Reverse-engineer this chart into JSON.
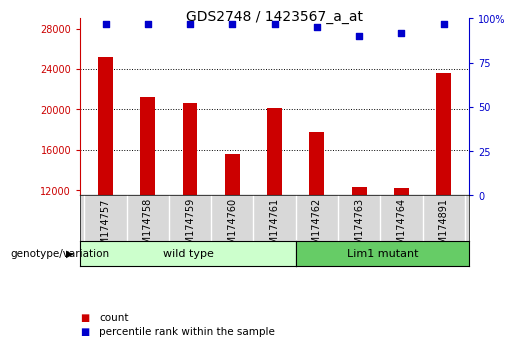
{
  "title": "GDS2748 / 1423567_a_at",
  "samples": [
    "GSM174757",
    "GSM174758",
    "GSM174759",
    "GSM174760",
    "GSM174761",
    "GSM174762",
    "GSM174763",
    "GSM174764",
    "GSM174891"
  ],
  "counts": [
    25200,
    21200,
    20600,
    15600,
    20100,
    17800,
    12300,
    12200,
    23600
  ],
  "percentile_ranks": [
    97,
    97,
    97,
    97,
    97,
    95,
    90,
    92,
    97
  ],
  "ylim_left": [
    11500,
    29000
  ],
  "ylim_right": [
    0,
    100
  ],
  "yticks_left": [
    12000,
    16000,
    20000,
    24000,
    28000
  ],
  "yticks_right": [
    0,
    25,
    50,
    75,
    100
  ],
  "bar_color": "#cc0000",
  "dot_color": "#0000cc",
  "wild_type_label": "wild type",
  "lim1_label": "Lim1 mutant",
  "wild_type_color": "#ccffcc",
  "lim1_color": "#66cc66",
  "genotype_label": "genotype/variation",
  "legend_count_label": "count",
  "legend_percentile_label": "percentile rank within the sample",
  "tick_label_fontsize": 7,
  "title_fontsize": 10,
  "bar_width": 0.35,
  "n_wild_type": 5,
  "n_lim1": 4
}
